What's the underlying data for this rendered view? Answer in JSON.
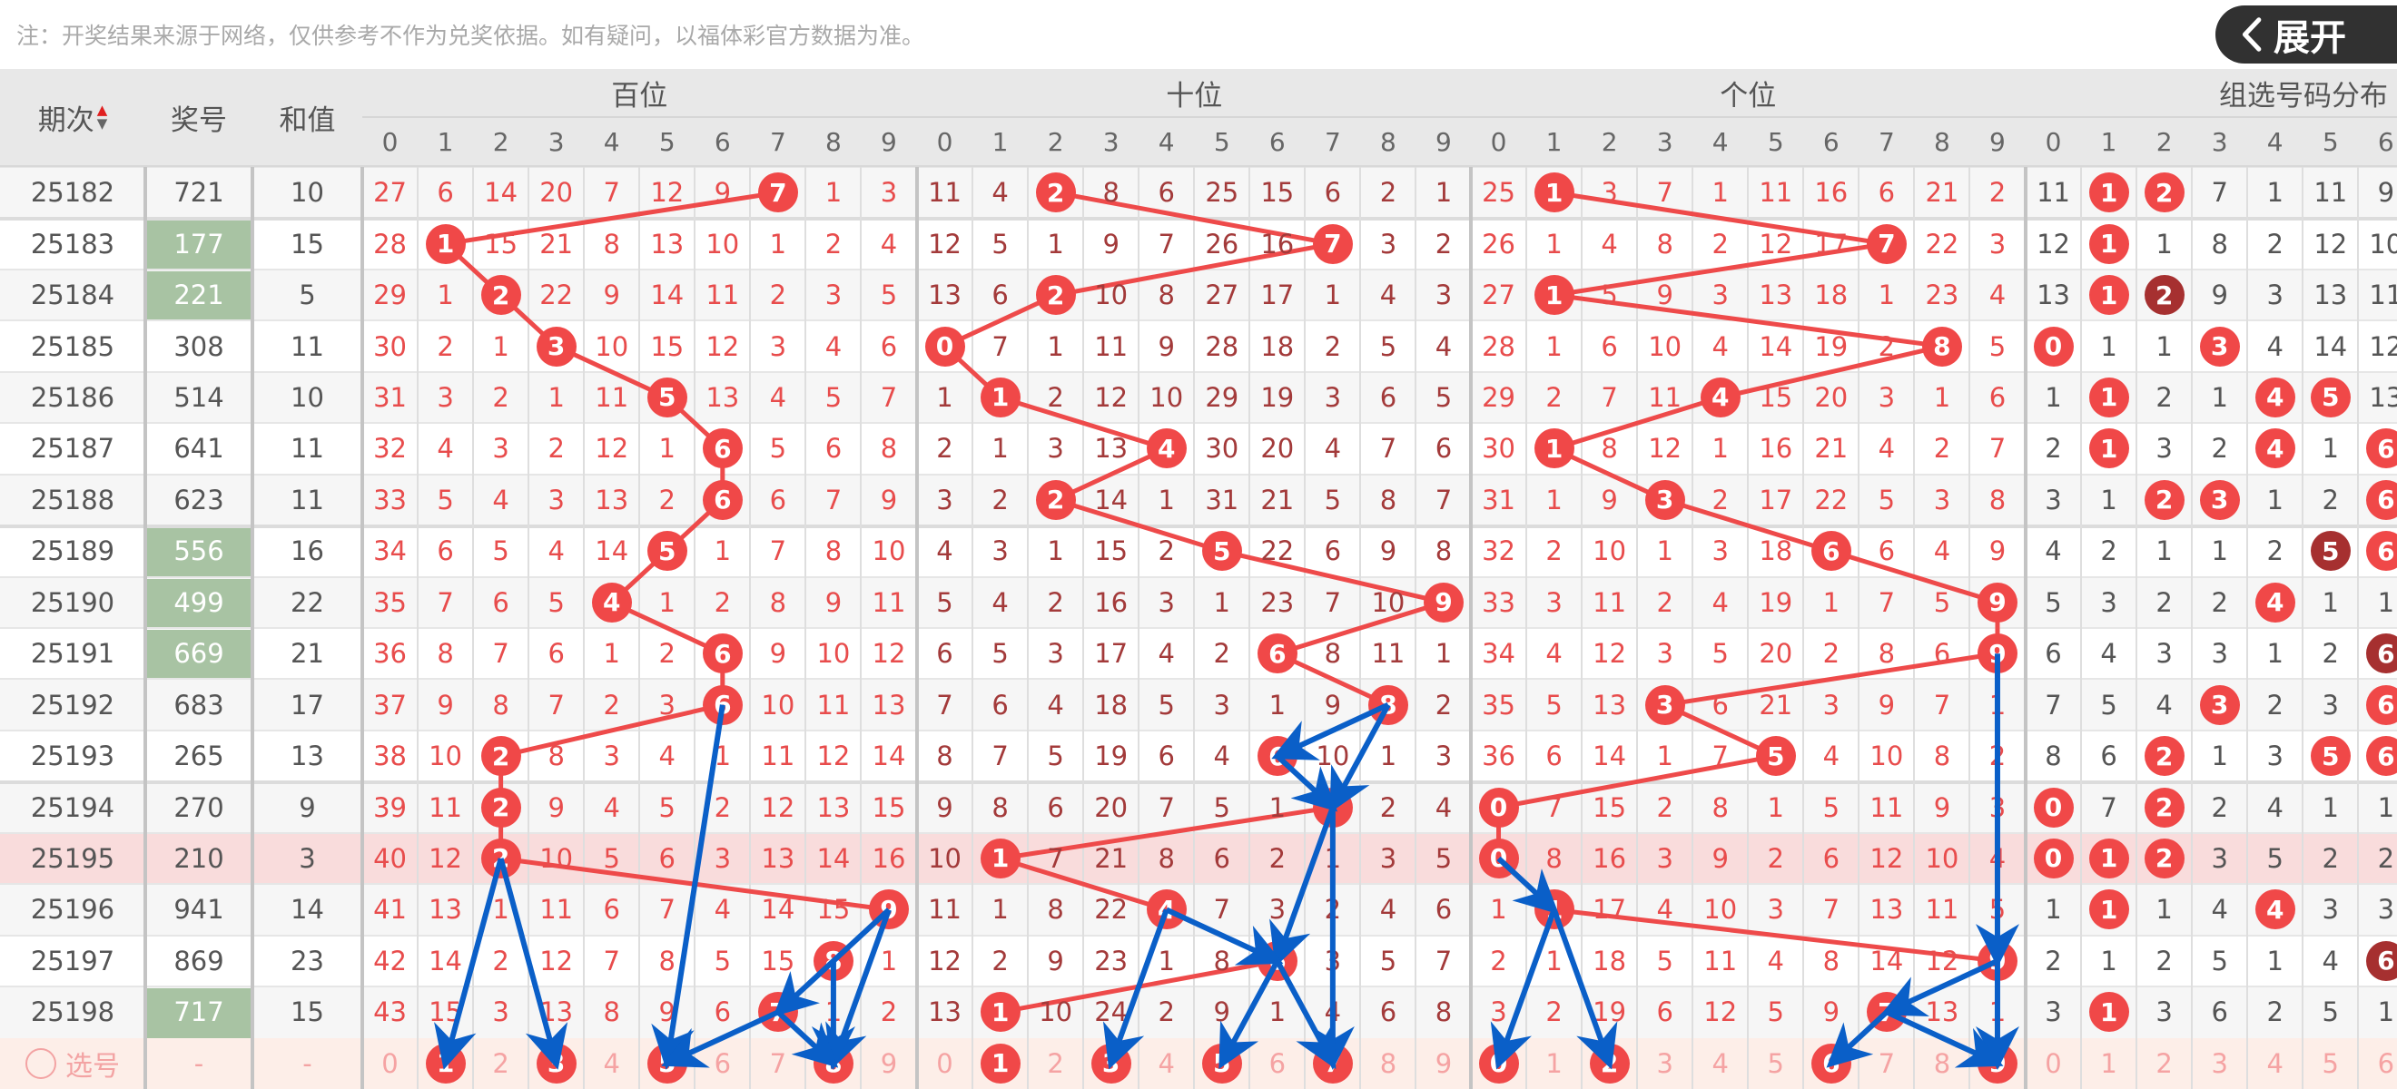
{
  "note": "注：开奖结果来源于网络，仅供参考不作为兑奖依据。如有疑问，以福体彩官方数据为准。",
  "header": {
    "period": "期次",
    "number": "奖号",
    "sum": "和值",
    "sections": [
      "百位",
      "十位",
      "个位",
      "组选号码分布"
    ],
    "digits": [
      "0",
      "1",
      "2",
      "3",
      "4",
      "5",
      "6",
      "7",
      "8",
      "9"
    ],
    "sort_icon": "sort-up-down-icon"
  },
  "colors": {
    "ball": "#f04848",
    "ball_dark": "#a63030",
    "hundreds_text": "#e84c4c",
    "tens_text": "#a33a3a",
    "units_text": "#e84c4c",
    "group_text": "#555555",
    "green_cell": "#a8c3a3",
    "trend_line": "#ee4a4a",
    "arrow": "#0a5fc8",
    "highlight_row": "#f9dcdc",
    "select_row": "#fdeee8"
  },
  "rows": [
    {
      "period": "25182",
      "number": "721",
      "sum": "10",
      "green": false,
      "h": [
        27,
        6,
        14,
        20,
        7,
        12,
        9,
        0,
        1,
        3
      ],
      "t": [
        11,
        4,
        0,
        8,
        6,
        25,
        15,
        6,
        2,
        1
      ],
      "u": [
        25,
        0,
        3,
        7,
        1,
        11,
        16,
        6,
        21,
        2
      ],
      "g": [
        11,
        0,
        0,
        7,
        1,
        11,
        9
      ],
      "gdark": []
    },
    {
      "period": "25183",
      "number": "177",
      "sum": "15",
      "green": true,
      "h": [
        28,
        0,
        15,
        21,
        8,
        13,
        10,
        1,
        2,
        4
      ],
      "t": [
        12,
        5,
        1,
        9,
        7,
        26,
        16,
        0,
        3,
        2
      ],
      "u": [
        26,
        1,
        4,
        8,
        2,
        12,
        17,
        0,
        22,
        3
      ],
      "g": [
        12,
        0,
        1,
        8,
        2,
        12,
        10
      ],
      "gdark": []
    },
    {
      "period": "25184",
      "number": "221",
      "sum": "5",
      "green": true,
      "h": [
        29,
        1,
        0,
        22,
        9,
        14,
        11,
        2,
        3,
        5
      ],
      "t": [
        13,
        6,
        0,
        10,
        8,
        27,
        17,
        1,
        4,
        3
      ],
      "u": [
        27,
        0,
        5,
        9,
        3,
        13,
        18,
        1,
        23,
        4
      ],
      "g": [
        13,
        0,
        0,
        9,
        3,
        13,
        11
      ],
      "gdark": [
        2
      ]
    },
    {
      "period": "25185",
      "number": "308",
      "sum": "11",
      "green": false,
      "h": [
        30,
        2,
        1,
        0,
        10,
        15,
        12,
        3,
        4,
        6
      ],
      "t": [
        0,
        7,
        1,
        11,
        9,
        28,
        18,
        2,
        5,
        4
      ],
      "u": [
        28,
        1,
        6,
        10,
        4,
        14,
        19,
        2,
        0,
        5
      ],
      "g": [
        0,
        1,
        1,
        0,
        4,
        14,
        12
      ],
      "gdark": []
    },
    {
      "period": "25186",
      "number": "514",
      "sum": "10",
      "green": false,
      "h": [
        31,
        3,
        2,
        1,
        11,
        0,
        13,
        4,
        5,
        7
      ],
      "t": [
        1,
        0,
        2,
        12,
        10,
        29,
        19,
        3,
        6,
        5
      ],
      "u": [
        29,
        2,
        7,
        11,
        0,
        15,
        20,
        3,
        1,
        6
      ],
      "g": [
        1,
        0,
        2,
        1,
        0,
        0,
        13
      ],
      "gdark": []
    },
    {
      "period": "25187",
      "number": "641",
      "sum": "11",
      "green": false,
      "h": [
        32,
        4,
        3,
        2,
        12,
        1,
        0,
        5,
        6,
        8
      ],
      "t": [
        2,
        1,
        3,
        13,
        0,
        30,
        20,
        4,
        7,
        6
      ],
      "u": [
        30,
        0,
        8,
        12,
        1,
        16,
        21,
        4,
        2,
        7
      ],
      "g": [
        2,
        0,
        3,
        2,
        0,
        1,
        0
      ],
      "gdark": []
    },
    {
      "period": "25188",
      "number": "623",
      "sum": "11",
      "green": false,
      "h": [
        33,
        5,
        4,
        3,
        13,
        2,
        0,
        6,
        7,
        9
      ],
      "t": [
        3,
        2,
        0,
        14,
        1,
        31,
        21,
        5,
        8,
        7
      ],
      "u": [
        31,
        1,
        9,
        0,
        2,
        17,
        22,
        5,
        3,
        8
      ],
      "g": [
        3,
        1,
        0,
        0,
        1,
        2,
        0
      ],
      "gdark": []
    },
    {
      "period": "25189",
      "number": "556",
      "sum": "16",
      "green": true,
      "h": [
        34,
        6,
        5,
        4,
        14,
        0,
        1,
        7,
        8,
        10
      ],
      "t": [
        4,
        3,
        1,
        15,
        2,
        0,
        22,
        6,
        9,
        8
      ],
      "u": [
        32,
        2,
        10,
        1,
        3,
        18,
        0,
        6,
        4,
        9
      ],
      "g": [
        4,
        2,
        1,
        1,
        2,
        0,
        0
      ],
      "gdark": [
        5
      ]
    },
    {
      "period": "25190",
      "number": "499",
      "sum": "22",
      "green": true,
      "h": [
        35,
        7,
        6,
        5,
        0,
        1,
        2,
        8,
        9,
        11
      ],
      "t": [
        5,
        4,
        2,
        16,
        3,
        1,
        23,
        7,
        10,
        0
      ],
      "u": [
        33,
        3,
        11,
        2,
        4,
        19,
        1,
        7,
        5,
        0
      ],
      "g": [
        5,
        3,
        2,
        2,
        0,
        1,
        1
      ],
      "gdark": []
    },
    {
      "period": "25191",
      "number": "669",
      "sum": "21",
      "green": true,
      "h": [
        36,
        8,
        7,
        6,
        1,
        2,
        0,
        9,
        10,
        12
      ],
      "t": [
        6,
        5,
        3,
        17,
        4,
        2,
        0,
        8,
        11,
        1
      ],
      "u": [
        34,
        4,
        12,
        3,
        5,
        20,
        2,
        8,
        6,
        0
      ],
      "g": [
        6,
        4,
        3,
        3,
        1,
        2,
        0
      ],
      "gdark": [
        6
      ]
    },
    {
      "period": "25192",
      "number": "683",
      "sum": "17",
      "green": false,
      "h": [
        37,
        9,
        8,
        7,
        2,
        3,
        0,
        10,
        11,
        13
      ],
      "t": [
        7,
        6,
        4,
        18,
        5,
        3,
        1,
        9,
        0,
        2
      ],
      "u": [
        35,
        5,
        13,
        0,
        6,
        21,
        3,
        9,
        7,
        1
      ],
      "g": [
        7,
        5,
        4,
        0,
        2,
        3,
        0
      ],
      "gdark": []
    },
    {
      "period": "25193",
      "number": "265",
      "sum": "13",
      "green": false,
      "h": [
        38,
        10,
        0,
        8,
        3,
        4,
        1,
        11,
        12,
        14
      ],
      "t": [
        8,
        7,
        5,
        19,
        6,
        4,
        0,
        10,
        1,
        3
      ],
      "u": [
        36,
        6,
        14,
        1,
        7,
        0,
        4,
        10,
        8,
        2
      ],
      "g": [
        8,
        6,
        0,
        1,
        3,
        0,
        0
      ],
      "gdark": []
    },
    {
      "period": "25194",
      "number": "270",
      "sum": "9",
      "green": false,
      "h": [
        39,
        11,
        0,
        9,
        4,
        5,
        2,
        12,
        13,
        15
      ],
      "t": [
        9,
        8,
        6,
        20,
        7,
        5,
        1,
        0,
        2,
        4
      ],
      "u": [
        0,
        7,
        15,
        2,
        8,
        1,
        5,
        11,
        9,
        3
      ],
      "g": [
        0,
        7,
        0,
        2,
        4,
        1,
        1
      ],
      "gdark": []
    },
    {
      "period": "25195",
      "number": "210",
      "sum": "3",
      "green": false,
      "highlight": true,
      "h": [
        40,
        12,
        0,
        10,
        5,
        6,
        3,
        13,
        14,
        16
      ],
      "t": [
        10,
        0,
        7,
        21,
        8,
        6,
        2,
        1,
        3,
        5
      ],
      "u": [
        0,
        8,
        16,
        3,
        9,
        2,
        6,
        12,
        10,
        4
      ],
      "g": [
        0,
        0,
        0,
        3,
        5,
        2,
        2
      ],
      "gdark": []
    },
    {
      "period": "25196",
      "number": "941",
      "sum": "14",
      "green": false,
      "h": [
        41,
        13,
        1,
        11,
        6,
        7,
        4,
        14,
        15,
        0
      ],
      "t": [
        11,
        1,
        8,
        22,
        0,
        7,
        3,
        2,
        4,
        6
      ],
      "u": [
        1,
        0,
        17,
        4,
        10,
        3,
        7,
        13,
        11,
        5
      ],
      "g": [
        1,
        0,
        1,
        4,
        0,
        3,
        3
      ],
      "gdark": []
    },
    {
      "period": "25197",
      "number": "869",
      "sum": "23",
      "green": false,
      "h": [
        42,
        14,
        2,
        12,
        7,
        8,
        5,
        15,
        0,
        1
      ],
      "t": [
        12,
        2,
        9,
        23,
        1,
        8,
        0,
        3,
        5,
        7
      ],
      "u": [
        2,
        1,
        18,
        5,
        11,
        4,
        8,
        14,
        12,
        0
      ],
      "g": [
        2,
        1,
        2,
        5,
        1,
        4,
        0
      ],
      "gdark": [
        6
      ]
    },
    {
      "period": "25198",
      "number": "717",
      "sum": "15",
      "green": true,
      "h": [
        43,
        15,
        3,
        13,
        8,
        9,
        6,
        0,
        1,
        2
      ],
      "t": [
        13,
        0,
        10,
        24,
        2,
        9,
        1,
        4,
        6,
        8
      ],
      "u": [
        3,
        2,
        19,
        6,
        12,
        5,
        9,
        0,
        13,
        1
      ],
      "g": [
        3,
        0,
        3,
        6,
        2,
        5,
        1
      ],
      "gdark": []
    }
  ],
  "select_row": {
    "label": "选号",
    "icon": "radio-circle-icon",
    "number": "-",
    "sum": "-",
    "selected": {
      "h": [
        1,
        3,
        5,
        8
      ],
      "t": [
        1,
        3,
        5,
        7
      ],
      "u": [
        0,
        2,
        6,
        9
      ],
      "g": []
    }
  },
  "annotations": {
    "arrows": [
      {
        "section": "h",
        "from": [
          2,
          "25195"
        ],
        "to": [
          1,
          "select"
        ]
      },
      {
        "section": "h",
        "from": [
          2,
          "25195"
        ],
        "to": [
          3,
          "select"
        ]
      },
      {
        "section": "h",
        "from": [
          6,
          "25192"
        ],
        "to": [
          5,
          "select"
        ]
      },
      {
        "section": "h",
        "from": [
          9,
          "25196"
        ],
        "to": [
          7,
          "25198"
        ]
      },
      {
        "section": "h",
        "from": [
          9,
          "25196"
        ],
        "to": [
          8,
          "select"
        ]
      },
      {
        "section": "h",
        "from": [
          8,
          "25197"
        ],
        "to": [
          8,
          "select"
        ]
      },
      {
        "section": "h",
        "from": [
          7,
          "25198"
        ],
        "to": [
          5,
          "select"
        ]
      },
      {
        "section": "h",
        "from": [
          7,
          "25198"
        ],
        "to": [
          8,
          "select"
        ]
      },
      {
        "section": "t",
        "from": [
          8,
          "25192"
        ],
        "to": [
          6,
          "25193"
        ]
      },
      {
        "section": "t",
        "from": [
          8,
          "25192"
        ],
        "to": [
          7,
          "25194"
        ]
      },
      {
        "section": "t",
        "from": [
          6,
          "25193"
        ],
        "to": [
          7,
          "25194"
        ]
      },
      {
        "section": "t",
        "from": [
          7,
          "25194"
        ],
        "to": [
          6,
          "25197"
        ]
      },
      {
        "section": "t",
        "from": [
          7,
          "25194"
        ],
        "to": [
          7,
          "select"
        ]
      },
      {
        "section": "t",
        "from": [
          4,
          "25196"
        ],
        "to": [
          3,
          "select"
        ]
      },
      {
        "section": "t",
        "from": [
          4,
          "25196"
        ],
        "to": [
          6,
          "25197"
        ]
      },
      {
        "section": "t",
        "from": [
          6,
          "25197"
        ],
        "to": [
          5,
          "select"
        ]
      },
      {
        "section": "t",
        "from": [
          6,
          "25197"
        ],
        "to": [
          7,
          "select"
        ]
      },
      {
        "section": "u",
        "from": [
          9,
          "25191"
        ],
        "to": [
          9,
          "25197"
        ]
      },
      {
        "section": "u",
        "from": [
          0,
          "25195"
        ],
        "to": [
          1,
          "25196"
        ]
      },
      {
        "section": "u",
        "from": [
          1,
          "25196"
        ],
        "to": [
          0,
          "select"
        ]
      },
      {
        "section": "u",
        "from": [
          1,
          "25196"
        ],
        "to": [
          2,
          "select"
        ]
      },
      {
        "section": "u",
        "from": [
          9,
          "25197"
        ],
        "to": [
          7,
          "25198"
        ]
      },
      {
        "section": "u",
        "from": [
          9,
          "25197"
        ],
        "to": [
          9,
          "select"
        ]
      },
      {
        "section": "u",
        "from": [
          7,
          "25198"
        ],
        "to": [
          6,
          "select"
        ]
      },
      {
        "section": "u",
        "from": [
          7,
          "25198"
        ],
        "to": [
          9,
          "select"
        ]
      }
    ]
  },
  "expand_button": {
    "label": "展开",
    "icon": "chevron-left-icon"
  }
}
